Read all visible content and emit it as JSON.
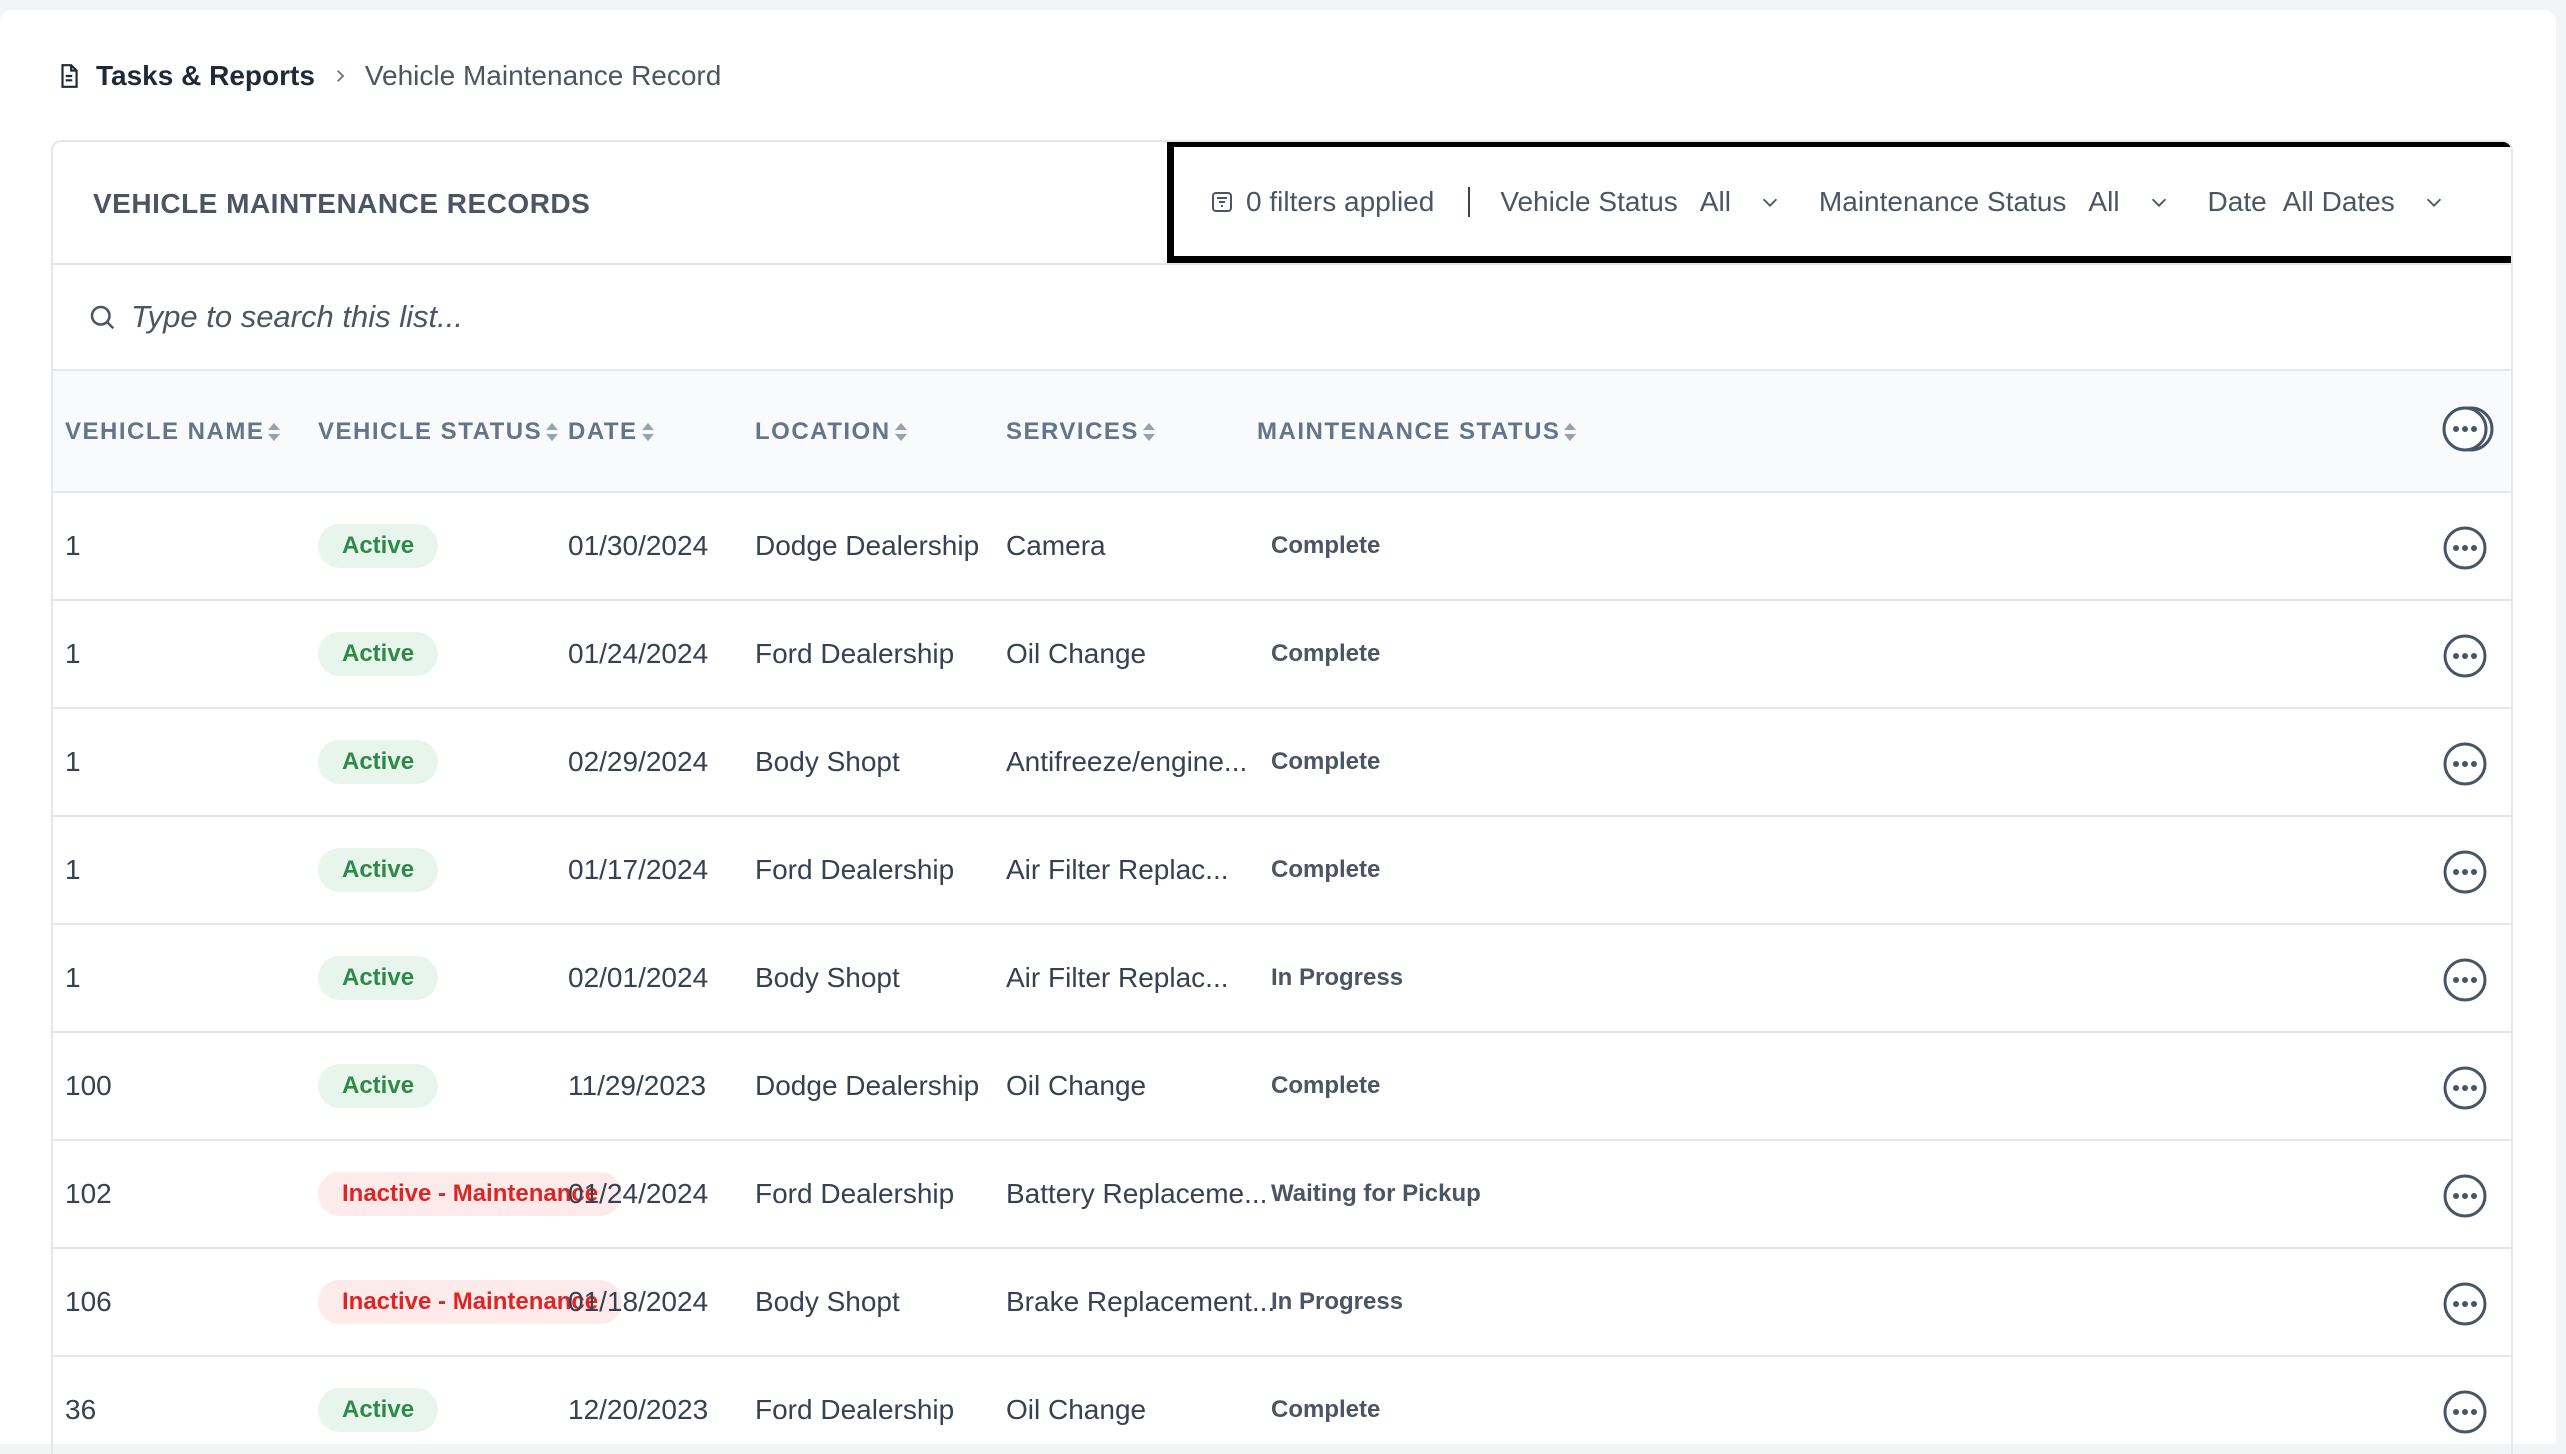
{
  "breadcrumb": {
    "root": "Tasks & Reports",
    "current": "Vehicle Maintenance Record"
  },
  "card": {
    "title": "VEHICLE MAINTENANCE RECORDS"
  },
  "filters": {
    "count_label": "0 filters applied",
    "vehicle_status": {
      "label": "Vehicle Status",
      "value": "All"
    },
    "maintenance_status": {
      "label": "Maintenance Status",
      "value": "All"
    },
    "date": {
      "label": "Date",
      "value": "All Dates"
    }
  },
  "search": {
    "placeholder": "Type to search this list..."
  },
  "columns": {
    "vehicle_name": "VEHICLE NAME",
    "vehicle_status": "VEHICLE STATUS",
    "date": "DATE",
    "location": "LOCATION",
    "services": "SERVICES",
    "maintenance_status": "MAINTENANCE STATUS"
  },
  "colors": {
    "active_bg": "#e8f5ec",
    "active_text": "#2f8a4a",
    "inactive_bg": "#fdeaea",
    "inactive_text": "#dc2626",
    "highlight_border": "#000000"
  },
  "rows": [
    {
      "name": "1",
      "status": "Active",
      "status_type": "active",
      "date": "01/30/2024",
      "location": "Dodge Dealership",
      "services": "Camera",
      "maintenance": "Complete"
    },
    {
      "name": "1",
      "status": "Active",
      "status_type": "active",
      "date": "01/24/2024",
      "location": "Ford Dealership",
      "services": "Oil Change",
      "maintenance": "Complete"
    },
    {
      "name": "1",
      "status": "Active",
      "status_type": "active",
      "date": "02/29/2024",
      "location": "Body Shopt",
      "services": "Antifreeze/engine...",
      "maintenance": "Complete"
    },
    {
      "name": "1",
      "status": "Active",
      "status_type": "active",
      "date": "01/17/2024",
      "location": "Ford Dealership",
      "services": "Air Filter Replac...",
      "maintenance": "Complete"
    },
    {
      "name": "1",
      "status": "Active",
      "status_type": "active",
      "date": "02/01/2024",
      "location": "Body Shopt",
      "services": "Air Filter Replac...",
      "maintenance": "In Progress"
    },
    {
      "name": "100",
      "status": "Active",
      "status_type": "active",
      "date": "11/29/2023",
      "location": "Dodge Dealership",
      "services": "Oil Change",
      "maintenance": "Complete"
    },
    {
      "name": "102",
      "status": "Inactive - Maintenance",
      "status_type": "inactive",
      "date": "01/24/2024",
      "location": "Ford Dealership",
      "services": "Battery Replaceme...",
      "maintenance": "Waiting for Pickup"
    },
    {
      "name": "106",
      "status": "Inactive - Maintenance",
      "status_type": "inactive",
      "date": "01/18/2024",
      "location": "Body Shopt",
      "services": "Brake Replacement...",
      "maintenance": "In Progress"
    },
    {
      "name": "36",
      "status": "Active",
      "status_type": "active",
      "date": "12/20/2023",
      "location": "Ford Dealership",
      "services": "Oil Change",
      "maintenance": "Complete"
    }
  ]
}
